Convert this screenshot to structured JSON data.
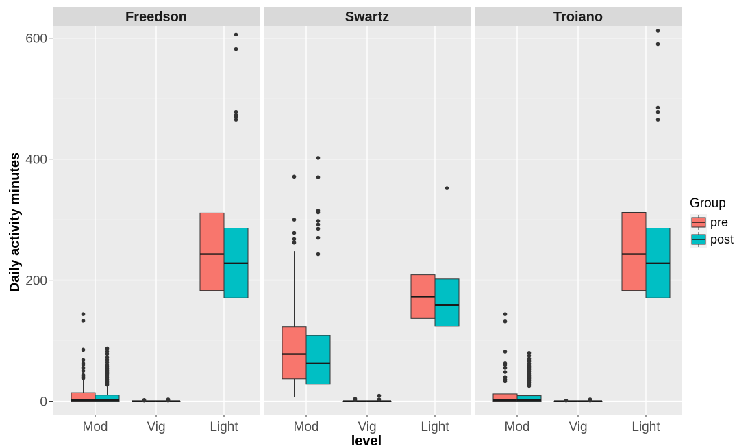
{
  "chart_data": {
    "type": "boxplot",
    "xlabel": "level",
    "ylabel": "Daily activity minutes",
    "ylim": [
      -22,
      620
    ],
    "yticks": [
      0,
      200,
      400,
      600
    ],
    "categories": [
      "Mod",
      "Vig",
      "Light"
    ],
    "facets": [
      "Freedson",
      "Swartz",
      "Troiano"
    ],
    "legend": {
      "title": "Group",
      "position": "right",
      "entries": [
        {
          "name": "pre",
          "color": "#f8766d"
        },
        {
          "name": "post",
          "color": "#00bfc4"
        }
      ]
    },
    "grid": true,
    "panels": [
      {
        "name": "Freedson",
        "boxes": [
          {
            "category": "Mod",
            "group": "pre",
            "min": 0,
            "q1": 0,
            "median": 2,
            "q3": 14,
            "max": 35,
            "outliers": [
              38,
              40,
              43,
              50,
              55,
              60,
              63,
              68,
              85,
              133,
              144
            ]
          },
          {
            "category": "Mod",
            "group": "post",
            "min": 0,
            "q1": 0,
            "median": 2,
            "q3": 10,
            "max": 24,
            "outliers": [
              27,
              30,
              33,
              36,
              39,
              42,
              45,
              48,
              51,
              54,
              57,
              60,
              64,
              68,
              72,
              78,
              82,
              87
            ]
          },
          {
            "category": "Vig",
            "group": "pre",
            "min": 0,
            "q1": 0,
            "median": 0,
            "q3": 0,
            "max": 0,
            "outliers": [
              1,
              2
            ]
          },
          {
            "category": "Vig",
            "group": "post",
            "min": 0,
            "q1": 0,
            "median": 0,
            "q3": 0,
            "max": 0,
            "outliers": [
              1,
              2,
              3
            ]
          },
          {
            "category": "Light",
            "group": "pre",
            "min": 92,
            "q1": 183,
            "median": 243,
            "q3": 311,
            "max": 481,
            "outliers": []
          },
          {
            "category": "Light",
            "group": "post",
            "min": 58,
            "q1": 171,
            "median": 228,
            "q3": 286,
            "max": 455,
            "outliers": [
              465,
              470,
              473,
              478,
              582,
              606
            ]
          }
        ]
      },
      {
        "name": "Swartz",
        "boxes": [
          {
            "category": "Mod",
            "group": "pre",
            "min": 7,
            "q1": 37,
            "median": 78,
            "q3": 123,
            "max": 248,
            "outliers": [
              262,
              268,
              278,
              300,
              371
            ]
          },
          {
            "category": "Mod",
            "group": "post",
            "min": 3,
            "q1": 28,
            "median": 63,
            "q3": 109,
            "max": 215,
            "outliers": [
              243,
              270,
              285,
              292,
              298,
              312,
              315,
              370,
              402
            ]
          },
          {
            "category": "Vig",
            "group": "pre",
            "min": 0,
            "q1": 0,
            "median": 0,
            "q3": 0,
            "max": 0,
            "outliers": [
              2,
              4
            ]
          },
          {
            "category": "Vig",
            "group": "post",
            "min": 0,
            "q1": 0,
            "median": 0,
            "q3": 0,
            "max": 0,
            "outliers": [
              3,
              9
            ]
          },
          {
            "category": "Light",
            "group": "pre",
            "min": 41,
            "q1": 137,
            "median": 173,
            "q3": 209,
            "max": 315,
            "outliers": []
          },
          {
            "category": "Light",
            "group": "post",
            "min": 54,
            "q1": 124,
            "median": 159,
            "q3": 202,
            "max": 308,
            "outliers": [
              352
            ]
          }
        ]
      },
      {
        "name": "Troiano",
        "boxes": [
          {
            "category": "Mod",
            "group": "pre",
            "min": 0,
            "q1": 0,
            "median": 2,
            "q3": 12,
            "max": 30,
            "outliers": [
              33,
              36,
              40,
              48,
              55,
              60,
              63,
              82,
              132,
              144
            ]
          },
          {
            "category": "Mod",
            "group": "post",
            "min": 0,
            "q1": 0,
            "median": 2,
            "q3": 9,
            "max": 22,
            "outliers": [
              25,
              28,
              31,
              34,
              37,
              40,
              43,
              46,
              49,
              52,
              55,
              58,
              62,
              66,
              70,
              75,
              80
            ]
          },
          {
            "category": "Vig",
            "group": "pre",
            "min": 0,
            "q1": 0,
            "median": 0,
            "q3": 0,
            "max": 0,
            "outliers": [
              1
            ]
          },
          {
            "category": "Vig",
            "group": "post",
            "min": 0,
            "q1": 0,
            "median": 0,
            "q3": 0,
            "max": 0,
            "outliers": [
              1,
              3
            ]
          },
          {
            "category": "Light",
            "group": "pre",
            "min": 93,
            "q1": 183,
            "median": 243,
            "q3": 312,
            "max": 486,
            "outliers": []
          },
          {
            "category": "Light",
            "group": "post",
            "min": 58,
            "q1": 171,
            "median": 228,
            "q3": 286,
            "max": 456,
            "outliers": [
              465,
              478,
              485,
              590,
              612
            ]
          }
        ]
      }
    ]
  }
}
